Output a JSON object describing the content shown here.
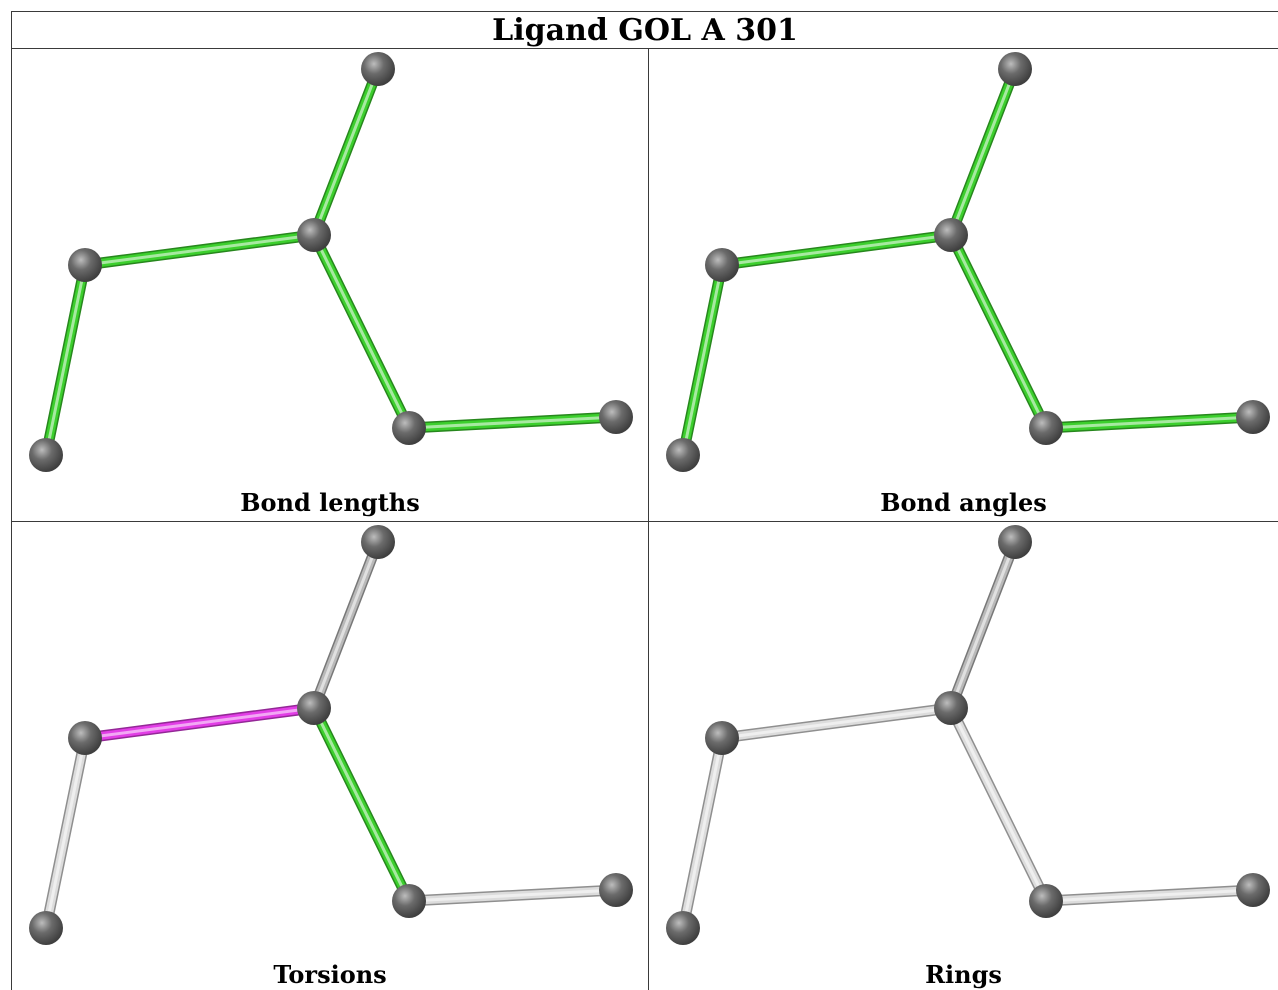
{
  "title": "Ligand GOL A 301",
  "colors": {
    "green": "#3ccf2d",
    "magenta": "#e23ee6",
    "grey_bond": "#b9b9b9",
    "grey_light": "#dcdcdc",
    "atom": "#6b6b6b"
  },
  "molecule": {
    "atoms": [
      "A1",
      "A2",
      "A3",
      "A4",
      "A5",
      "A6"
    ],
    "bonds": [
      [
        "A1",
        "A2"
      ],
      [
        "A2",
        "A3"
      ],
      [
        "A3",
        "A4"
      ],
      [
        "A3",
        "A5"
      ],
      [
        "A5",
        "A6"
      ]
    ]
  },
  "panels": [
    {
      "caption": "Bond lengths",
      "bond_colors": [
        "green",
        "green",
        "green",
        "green",
        "green"
      ]
    },
    {
      "caption": "Bond angles",
      "bond_colors": [
        "green",
        "green",
        "green",
        "green",
        "green"
      ]
    },
    {
      "caption": "Torsions",
      "bond_colors": [
        "grey_light",
        "magenta",
        "grey_bond",
        "green",
        "grey_light"
      ]
    },
    {
      "caption": "Rings",
      "bond_colors": [
        "grey_light",
        "grey_light",
        "grey_bond",
        "grey_light",
        "grey_light"
      ]
    }
  ]
}
